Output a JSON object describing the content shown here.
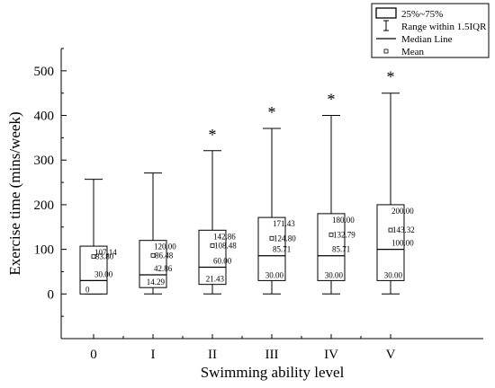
{
  "chart_data": {
    "type": "box",
    "xlabel": "Swimming ability level",
    "ylabel": "Exercise time (mins/week)",
    "ylim": [
      -100,
      550
    ],
    "yticks": [
      0,
      100,
      200,
      300,
      400,
      500
    ],
    "categories": [
      "0",
      "I",
      "II",
      "III",
      "IV",
      "V"
    ],
    "boxes": [
      {
        "category": "0",
        "whisker_low": 0,
        "q1": 0,
        "median": 30.0,
        "q3": 107.14,
        "whisker_high": 257,
        "mean": 83.8,
        "outlier_marker": false,
        "labels": {
          "q3": "107.14",
          "mean": "83.80",
          "median": "30.00",
          "q1": "0"
        }
      },
      {
        "category": "I",
        "whisker_low": 0,
        "q1": 14.29,
        "median": 42.86,
        "q3": 120.0,
        "whisker_high": 271,
        "mean": 86.48,
        "outlier_marker": false,
        "labels": {
          "q3": "120.00",
          "mean": "86.48",
          "median": "42.86",
          "q1": "14.29"
        }
      },
      {
        "category": "II",
        "whisker_low": 0,
        "q1": 21.43,
        "median": 60.0,
        "q3": 142.86,
        "whisker_high": 321,
        "mean": 108.48,
        "outlier_marker": true,
        "labels": {
          "q3": "142.86",
          "mean": "108.48",
          "median": "60.00",
          "q1": "21.43"
        }
      },
      {
        "category": "III",
        "whisker_low": 0,
        "q1": 30.0,
        "median": 85.71,
        "q3": 171.43,
        "whisker_high": 371,
        "mean": 124.8,
        "outlier_marker": true,
        "labels": {
          "q3": "171.43",
          "mean": "124.80",
          "median": "85.71",
          "q1": "30.00"
        }
      },
      {
        "category": "IV",
        "whisker_low": 0,
        "q1": 30.0,
        "median": 85.71,
        "q3": 180.0,
        "whisker_high": 400,
        "mean": 132.79,
        "outlier_marker": true,
        "labels": {
          "q3": "180.00",
          "mean": "132.79",
          "median": "85.71",
          "q1": "30.00"
        }
      },
      {
        "category": "V",
        "whisker_low": 0,
        "q1": 30.0,
        "median": 100.0,
        "q3": 200.0,
        "whisker_high": 450,
        "mean": 143.32,
        "outlier_marker": true,
        "labels": {
          "q3": "200.00",
          "mean": "143.32",
          "median": "100.00",
          "q1": "30.00"
        }
      }
    ],
    "outlier_symbol": "*",
    "legend": {
      "placement": "top-right",
      "entries": [
        {
          "key": "box",
          "label": "25%~75%"
        },
        {
          "key": "whisker",
          "label": "Range within 1.5IQR"
        },
        {
          "key": "median",
          "label": "Median Line"
        },
        {
          "key": "mean",
          "label": "Mean"
        }
      ]
    },
    "grid": false
  }
}
